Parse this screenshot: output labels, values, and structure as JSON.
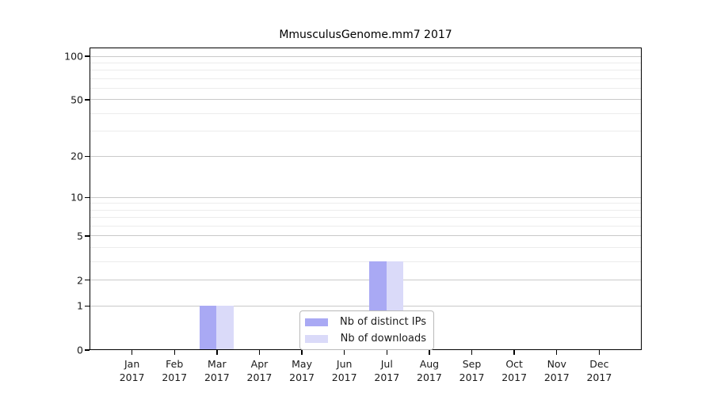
{
  "chart_data": {
    "type": "bar",
    "title": "MmusculusGenome.mm7 2017",
    "categories": [
      "Jan",
      "Feb",
      "Mar",
      "Apr",
      "May",
      "Jun",
      "Jul",
      "Aug",
      "Sep",
      "Oct",
      "Nov",
      "Dec"
    ],
    "year_label": "2017",
    "series": [
      {
        "name": "Nb of distinct IPs",
        "color": "#a9a9f4",
        "values": [
          0,
          0,
          1,
          0,
          0,
          0,
          3,
          0,
          0,
          0,
          0,
          0
        ]
      },
      {
        "name": "Nb of downloads",
        "color": "#dadaf9",
        "values": [
          0,
          0,
          1,
          0,
          0,
          0,
          3,
          0,
          0,
          0,
          0,
          0
        ]
      }
    ],
    "xlabel": "",
    "ylabel": "",
    "y_scale": "log1p",
    "ylim": [
      0,
      115
    ],
    "y_major_ticks": [
      0,
      1,
      2,
      5,
      10,
      20,
      50,
      100
    ],
    "y_minor_ticks": [
      3,
      4,
      6,
      7,
      8,
      9,
      30,
      40,
      60,
      70,
      80,
      90
    ],
    "grid": "horizontal",
    "legend_position": "lower center",
    "colors": {
      "grid_major": "#c9c9c9",
      "grid_minor": "#ececec",
      "spine": "#000000",
      "text": "#1a1a1a"
    }
  }
}
